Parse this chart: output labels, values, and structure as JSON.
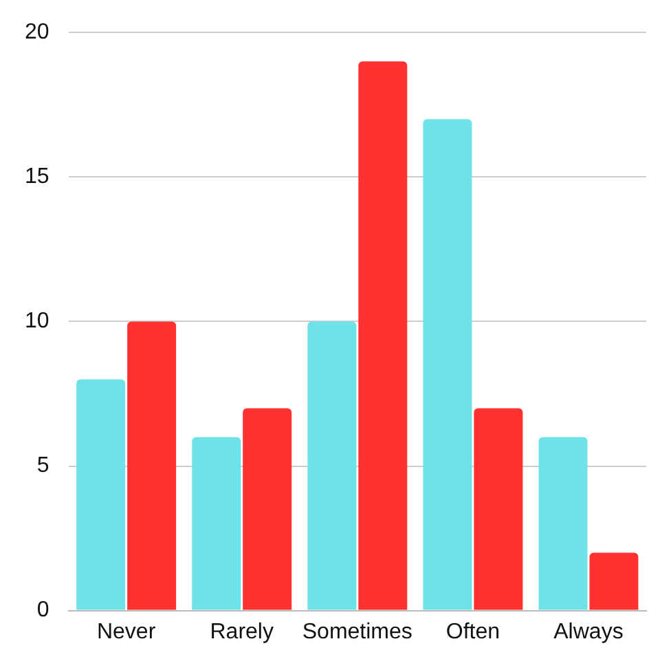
{
  "chart_data": {
    "type": "bar",
    "categories": [
      "Never",
      "Rarely",
      "Sometimes",
      "Often",
      "Always"
    ],
    "series": [
      {
        "color": "#6de3e8",
        "values": [
          8,
          6,
          10,
          17,
          6
        ]
      },
      {
        "color": "#ff3131",
        "values": [
          10,
          7,
          19,
          7,
          2
        ]
      }
    ],
    "ylim": [
      0,
      20
    ],
    "yticks": [
      0,
      5,
      10,
      15,
      20
    ],
    "grid": "y",
    "legend": false
  }
}
